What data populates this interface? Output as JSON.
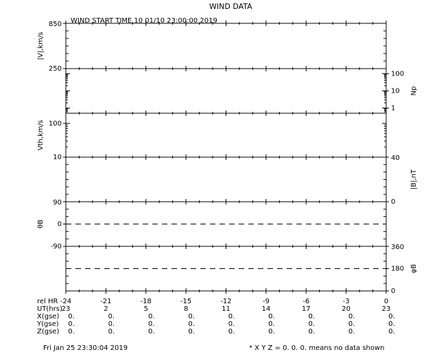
{
  "title": "WIND DATA",
  "start_time": "WIND START TIME  10 01/10 23:00:00 2019",
  "chart_data": {
    "type": "line",
    "x_range_hours": [
      -24,
      0
    ],
    "grid": false,
    "panels": [
      {
        "label": "|V|,km/s",
        "axis_side": "left",
        "scale": "linear",
        "ylim": [
          250,
          850
        ],
        "tick_labels": [
          "850",
          "250"
        ],
        "series": []
      },
      {
        "label": "Np",
        "axis_side": "right",
        "scale": "log",
        "ylim": [
          0.5,
          200
        ],
        "tick_labels": [
          "100",
          "10",
          "1"
        ],
        "series": []
      },
      {
        "label": "Vth,km/s",
        "axis_side": "left",
        "scale": "log",
        "ylim": [
          10,
          200
        ],
        "tick_labels": [
          "100",
          "10"
        ],
        "series": []
      },
      {
        "label": "|B|,nT",
        "axis_side": "right",
        "scale": "linear",
        "ylim": [
          0,
          40
        ],
        "tick_labels": [
          "40",
          "0"
        ],
        "series": []
      },
      {
        "label": "θB",
        "axis_side": "left",
        "scale": "linear",
        "ylim": [
          -90,
          90
        ],
        "tick_labels": [
          "90",
          "0",
          "-90"
        ],
        "reference_line": 0,
        "series": []
      },
      {
        "label": "φB",
        "axis_side": "right",
        "scale": "linear",
        "ylim": [
          0,
          360
        ],
        "tick_labels": [
          "360",
          "180",
          "0"
        ],
        "reference_line": 180,
        "series": []
      }
    ]
  },
  "table": {
    "row_labels": [
      "rel HR",
      "UT(hrs)",
      "X(gse)",
      "Y(gse)",
      "Z(gse)"
    ],
    "rel_hr": [
      "-24",
      "-21",
      "-18",
      "-15",
      "-12",
      "-9",
      "-6",
      "-3",
      "0"
    ],
    "ut": [
      "23",
      "2",
      "5",
      "8",
      "11",
      "14",
      "17",
      "20",
      "23"
    ],
    "x": [
      "0.",
      "0.",
      "0.",
      "0.",
      "0.",
      "0.",
      "0.",
      "0.",
      "0."
    ],
    "y": [
      "0.",
      "0.",
      "0.",
      "0.",
      "0.",
      "0.",
      "0.",
      "0.",
      "0."
    ],
    "z": [
      "0.",
      "0.",
      "0.",
      "0.",
      "0.",
      "0.",
      "0.",
      "0.",
      "0."
    ]
  },
  "footer": {
    "timestamp": "Fri Jan 25 23:30:04 2019",
    "note": "* X Y Z = 0. 0. 0. means no data shown"
  }
}
